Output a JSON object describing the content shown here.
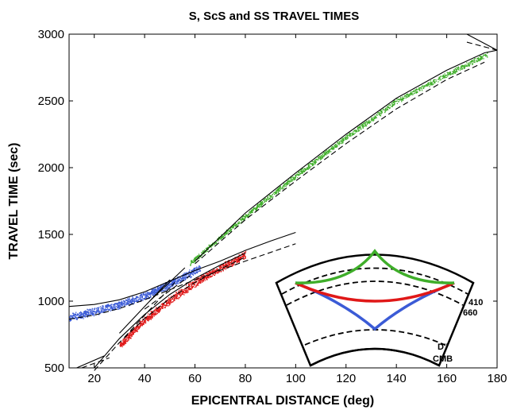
{
  "chart_data": {
    "type": "scatter",
    "title": "S, ScS and SS TRAVEL TIMES",
    "xlabel": "EPICENTRAL DISTANCE (deg)",
    "ylabel": "TRAVEL TIME (sec)",
    "xlim": [
      10,
      180
    ],
    "ylim": [
      500,
      3000
    ],
    "xticks": [
      20,
      40,
      60,
      80,
      100,
      120,
      140,
      160,
      180
    ],
    "yticks": [
      500,
      1000,
      1500,
      2000,
      2500,
      3000
    ],
    "grid": false,
    "colors": {
      "S": "#3b5bd6",
      "ScS": "#e01818",
      "SS": "#3fae2a",
      "model": "#000000"
    },
    "series": [
      {
        "phase": "S",
        "color": "#3b5bd6",
        "x_range": [
          10,
          62
        ],
        "x": [
          10,
          20,
          30,
          40,
          50,
          60,
          62
        ],
        "y": [
          880,
          925,
          975,
          1040,
          1130,
          1230,
          1250
        ]
      },
      {
        "phase": "ScS",
        "color": "#e01818",
        "x_range": [
          30,
          80
        ],
        "x": [
          30,
          40,
          50,
          60,
          70,
          80
        ],
        "y": [
          670,
          860,
          1010,
          1140,
          1250,
          1350
        ]
      },
      {
        "phase": "SS",
        "color": "#3fae2a",
        "x_range": [
          58,
          176
        ],
        "x": [
          58,
          80,
          100,
          120,
          140,
          160,
          176
        ],
        "y": [
          1285,
          1640,
          1940,
          2230,
          2500,
          2700,
          2850
        ]
      }
    ],
    "model_curves": [
      {
        "style": "solid",
        "x": [
          10,
          20,
          30,
          40,
          50,
          60,
          70,
          80,
          90,
          100
        ],
        "y": [
          960,
          975,
          1010,
          1070,
          1150,
          1230,
          1300,
          1380,
          1450,
          1515
        ]
      },
      {
        "style": "dashed",
        "x": [
          10,
          20,
          30,
          40,
          50,
          60,
          70,
          80,
          90,
          100
        ],
        "y": [
          865,
          895,
          945,
          1010,
          1085,
          1160,
          1230,
          1300,
          1365,
          1430
        ]
      },
      {
        "style": "solid",
        "x": [
          20,
          30,
          40,
          50,
          60,
          70,
          80
        ],
        "y": [
          500,
          720,
          900,
          1050,
          1170,
          1270,
          1360
        ]
      },
      {
        "style": "dashed",
        "x": [
          20,
          30,
          40,
          50,
          60,
          70,
          80
        ],
        "y": [
          480,
          690,
          870,
          1020,
          1140,
          1240,
          1330
        ]
      },
      {
        "style": "solid",
        "x": [
          60,
          80,
          100,
          120,
          140,
          160,
          175,
          180
        ],
        "y": [
          1300,
          1660,
          1960,
          2250,
          2520,
          2730,
          2860,
          2880
        ]
      },
      {
        "style": "dashed",
        "x": [
          60,
          80,
          100,
          120,
          140,
          160,
          175
        ],
        "y": [
          1280,
          1610,
          1900,
          2180,
          2440,
          2660,
          2790
        ]
      },
      {
        "style": "solid",
        "x": [
          168,
          180
        ],
        "y": [
          3000,
          2880
        ]
      },
      {
        "style": "dashed",
        "x": [
          168,
          180
        ],
        "y": [
          2940,
          2880
        ]
      }
    ],
    "short_branches": [
      {
        "style": "solid",
        "x": [
          13,
          24
        ],
        "y": [
          500,
          590
        ]
      },
      {
        "style": "dashed",
        "x": [
          15,
          26
        ],
        "y": [
          500,
          575
        ]
      },
      {
        "style": "solid",
        "x": [
          30,
          50
        ],
        "y": [
          760,
          1160
        ]
      },
      {
        "style": "dashed",
        "x": [
          32,
          52
        ],
        "y": [
          730,
          1140
        ]
      },
      {
        "style": "solid",
        "x": [
          42,
          56
        ],
        "y": [
          1000,
          1250
        ]
      },
      {
        "style": "dashed",
        "x": [
          40,
          58
        ],
        "y": [
          940,
          1190
        ]
      }
    ],
    "inset": {
      "labels": [
        "410",
        "660",
        "D''",
        "CMB"
      ],
      "ray_colors": {
        "S": "#3b5bd6",
        "ScS": "#e01818",
        "SS": "#3fae2a"
      }
    }
  }
}
